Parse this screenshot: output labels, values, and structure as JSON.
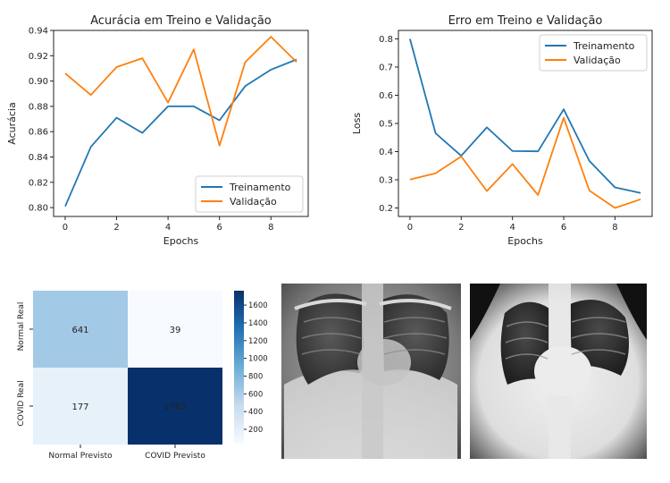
{
  "colors": {
    "train": "#1f77b4",
    "val": "#ff7f0e",
    "cm_low": "#f7fbff",
    "cm_high": "#08306b"
  },
  "chart_data": [
    {
      "type": "line",
      "title": "Acurácia em Treino e Validação",
      "xlabel": "Epochs",
      "ylabel": "Acurácia",
      "x": [
        0,
        1,
        2,
        3,
        4,
        5,
        6,
        7,
        8,
        9
      ],
      "xlim": [
        -0.45,
        9.45
      ],
      "ylim": [
        0.793,
        0.94
      ],
      "xticks": [
        0,
        2,
        4,
        6,
        8
      ],
      "yticks": [
        0.8,
        0.82,
        0.84,
        0.86,
        0.88,
        0.9,
        0.92,
        0.94
      ],
      "ytick_labels": [
        "0.80",
        "0.82",
        "0.84",
        "0.86",
        "0.88",
        "0.90",
        "0.92",
        "0.94"
      ],
      "legend": "lower-right",
      "grid": false,
      "series": [
        {
          "name": "Treinamento",
          "color": "#1f77b4",
          "values": [
            0.801,
            0.848,
            0.871,
            0.859,
            0.88,
            0.88,
            0.869,
            0.896,
            0.909,
            0.917
          ]
        },
        {
          "name": "Validação",
          "color": "#ff7f0e",
          "values": [
            0.906,
            0.889,
            0.911,
            0.918,
            0.883,
            0.925,
            0.849,
            0.915,
            0.935,
            0.915
          ]
        }
      ]
    },
    {
      "type": "line",
      "title": "Erro em Treino e Validação",
      "xlabel": "Epochs",
      "ylabel": "Loss",
      "x": [
        0,
        1,
        2,
        3,
        4,
        5,
        6,
        7,
        8,
        9
      ],
      "xlim": [
        -0.45,
        9.45
      ],
      "ylim": [
        0.17,
        0.83
      ],
      "xticks": [
        0,
        2,
        4,
        6,
        8
      ],
      "yticks": [
        0.2,
        0.3,
        0.4,
        0.5,
        0.6,
        0.7,
        0.8
      ],
      "ytick_labels": [
        "0.2",
        "0.3",
        "0.4",
        "0.5",
        "0.6",
        "0.7",
        "0.8"
      ],
      "legend": "top-right",
      "grid": false,
      "series": [
        {
          "name": "Treinamento",
          "color": "#1f77b4",
          "values": [
            0.8,
            0.465,
            0.385,
            0.486,
            0.402,
            0.401,
            0.55,
            0.367,
            0.273,
            0.253
          ]
        },
        {
          "name": "Validação",
          "color": "#ff7f0e",
          "values": [
            0.301,
            0.323,
            0.383,
            0.26,
            0.356,
            0.246,
            0.52,
            0.262,
            0.2,
            0.231
          ]
        }
      ]
    },
    {
      "type": "heatmap",
      "rows": [
        "Normal Real",
        "COVID Real"
      ],
      "cols": [
        "Normal Previsto",
        "COVID Previsto"
      ],
      "values": [
        [
          641,
          39
        ],
        [
          177,
          1762
        ]
      ],
      "colorbar_range": [
        39,
        1762
      ],
      "colorbar_ticks": [
        200,
        400,
        600,
        800,
        1000,
        1200,
        1400,
        1600
      ],
      "cmap": "Blues"
    }
  ],
  "images": [
    {
      "name": "chest-xray-1"
    },
    {
      "name": "chest-xray-2"
    }
  ]
}
